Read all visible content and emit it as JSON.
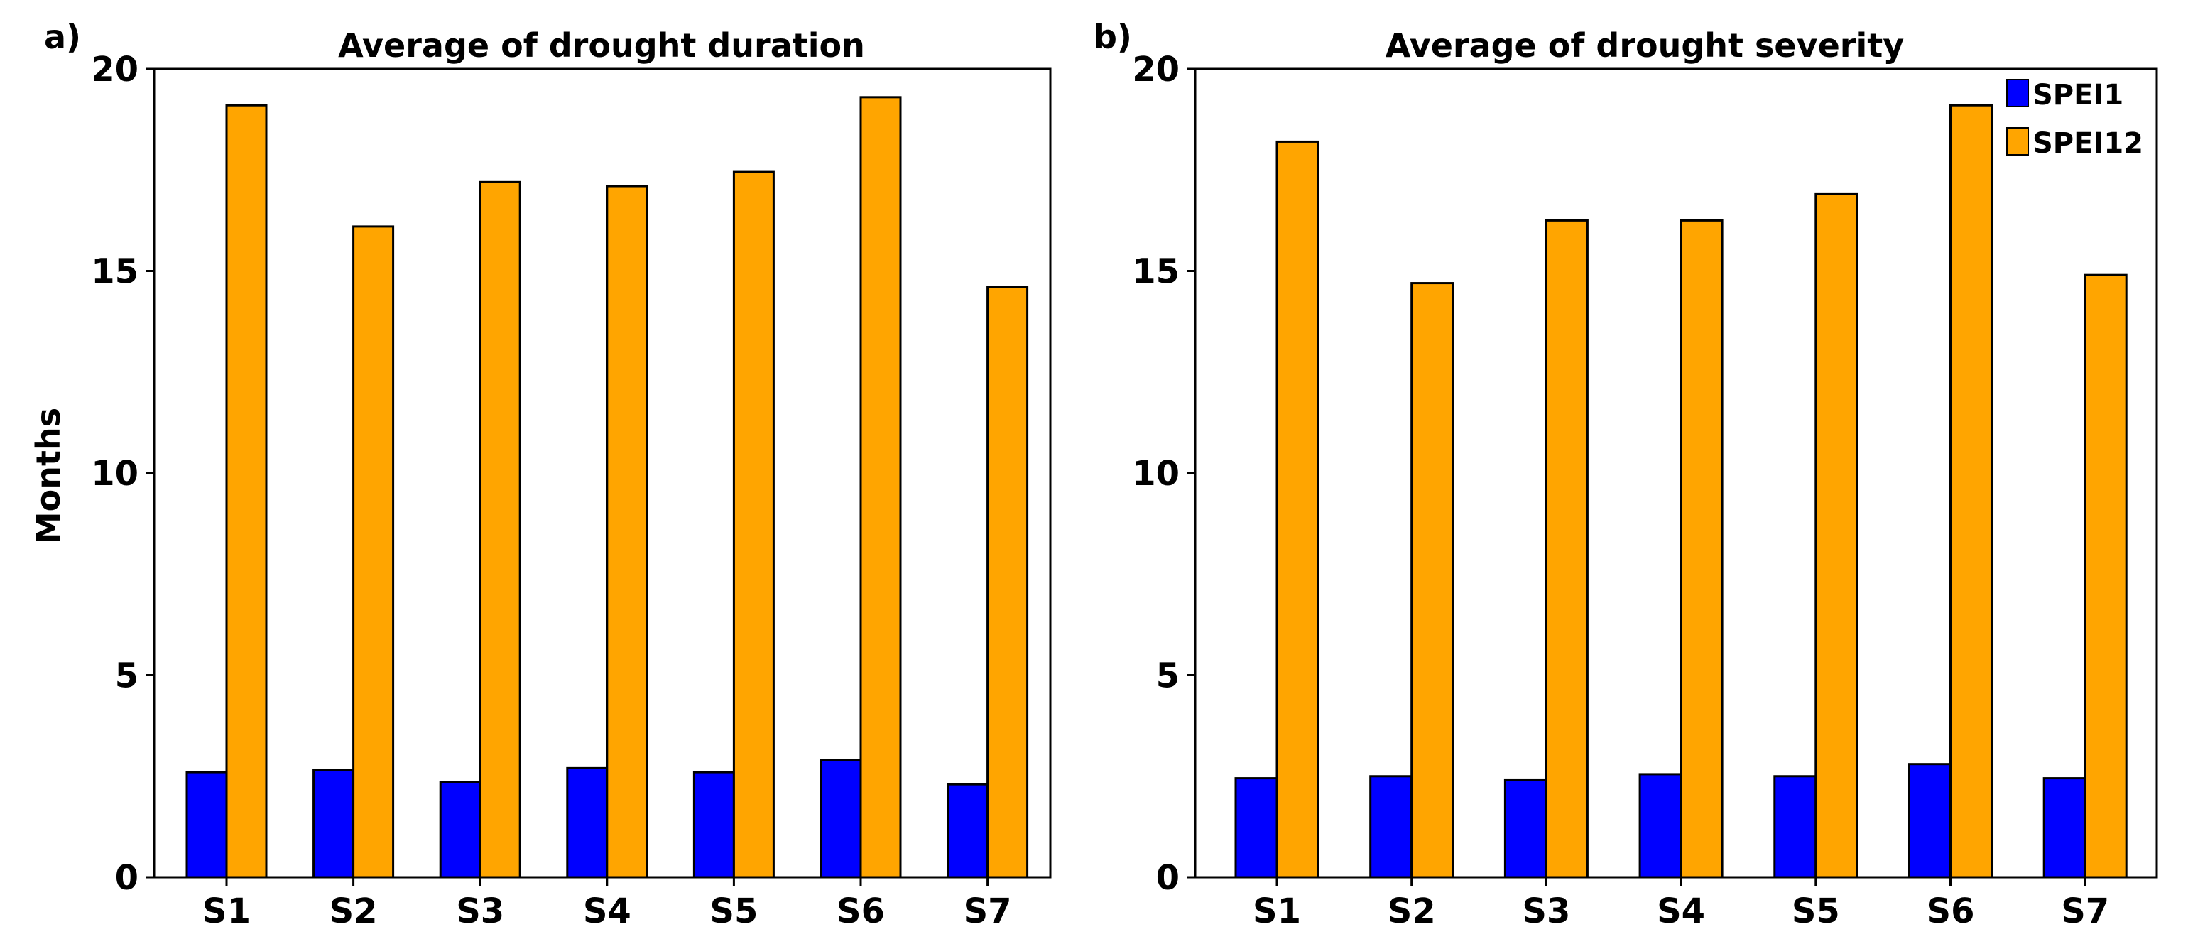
{
  "chart_data": [
    {
      "type": "bar",
      "panel_label": "a)",
      "title": "Average of drought duration",
      "xlabel": "",
      "ylabel": "Months",
      "ylim": [
        0,
        20
      ],
      "yticks": [
        0,
        5,
        10,
        15,
        20
      ],
      "categories": [
        "S1",
        "S2",
        "S3",
        "S4",
        "S5",
        "S6",
        "S7"
      ],
      "series": [
        {
          "name": "SPEI1",
          "color": "#0000ff",
          "values": [
            2.6,
            2.65,
            2.35,
            2.7,
            2.6,
            2.9,
            2.3
          ]
        },
        {
          "name": "SPEI12",
          "color": "#ffa500",
          "values": [
            19.1,
            16.1,
            17.2,
            17.1,
            17.45,
            19.3,
            14.6
          ]
        }
      ],
      "legend": false
    },
    {
      "type": "bar",
      "panel_label": "b)",
      "title": "Average of drought severity",
      "xlabel": "",
      "ylabel": "",
      "ylim": [
        0,
        20
      ],
      "yticks": [
        0,
        5,
        10,
        15,
        20
      ],
      "categories": [
        "S1",
        "S2",
        "S3",
        "S4",
        "S5",
        "S6",
        "S7"
      ],
      "series": [
        {
          "name": "SPEI1",
          "color": "#0000ff",
          "values": [
            2.45,
            2.5,
            2.4,
            2.55,
            2.5,
            2.8,
            2.45
          ]
        },
        {
          "name": "SPEI12",
          "color": "#ffa500",
          "values": [
            18.2,
            14.7,
            16.25,
            16.25,
            16.9,
            19.1,
            14.9
          ]
        }
      ],
      "legend": true,
      "legend_position": "top-right"
    }
  ]
}
